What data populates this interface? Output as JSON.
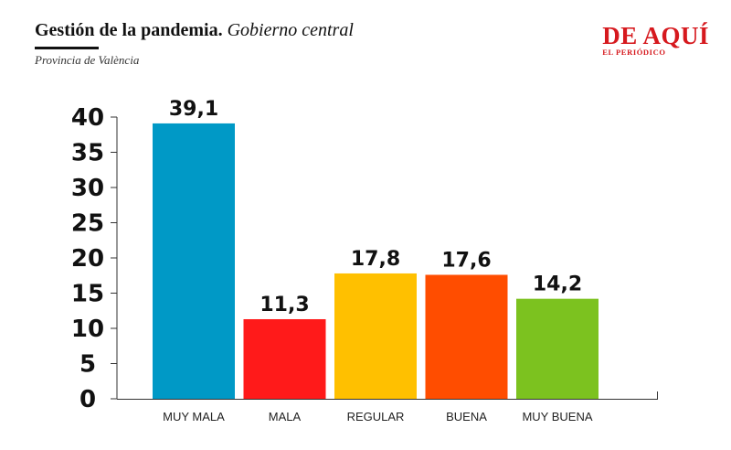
{
  "header": {
    "title_bold": "Gestión de la pandemia.",
    "title_italic": "Gobierno central",
    "subtitle": "Provincia de València"
  },
  "logo": {
    "main": "DE AQUÍ",
    "sub": "EL PERIÓDICO",
    "color": "#d6191e"
  },
  "chart_data": {
    "type": "bar",
    "title": "Gestión de la pandemia. Gobierno central",
    "subtitle": "Provincia de València",
    "categories": [
      "MUY MALA",
      "MALA",
      "REGULAR",
      "BUENA",
      "MUY BUENA"
    ],
    "values": [
      39.1,
      11.3,
      17.8,
      17.6,
      14.2
    ],
    "value_labels": [
      "39,1",
      "11,3",
      "17,8",
      "17,6",
      "14,2"
    ],
    "colors": [
      "#0099c6",
      "#ff1a1a",
      "#ffc000",
      "#ff4d00",
      "#7cc21f"
    ],
    "yticks": [
      0,
      5,
      10,
      15,
      20,
      25,
      30,
      35,
      40
    ],
    "ylim": [
      0,
      40
    ],
    "xlabel": "",
    "ylabel": "",
    "grid": false,
    "legend": "none"
  }
}
